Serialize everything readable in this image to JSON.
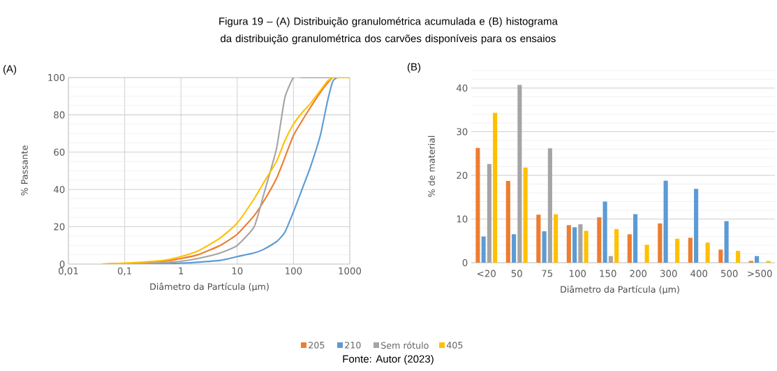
{
  "chart_data": [
    {
      "type": "line",
      "title": "Figura 19 – (A) Distribuição granulométrica acumulada e (B) histograma da distribuição granulométrica dos carvões disponíveis para os ensaios",
      "xlabel": "Diâmetro da Partícula (µm)",
      "ylabel": "% Passante",
      "annotations": [
        "(A)",
        "Fonte: Autor (2023)"
      ],
      "log": "x",
      "grid": true,
      "xlim": [
        0.01,
        1000
      ],
      "ylim": [
        0,
        100
      ],
      "xticks": [
        {
          "value": 0.01,
          "label": "0,01"
        },
        {
          "value": 0.1,
          "label": "0,1"
        },
        1,
        10,
        100,
        1000
      ],
      "yticks": [
        0,
        20,
        40,
        60,
        80,
        100
      ],
      "x": [
        0.04,
        0.1,
        0.2,
        0.5,
        1,
        2,
        5,
        10,
        20,
        30,
        50,
        70,
        100,
        150,
        200,
        300,
        400,
        500,
        600,
        700,
        1000
      ],
      "series": [
        {
          "color": "#ed7d31",
          "values": [
            0,
            0.3,
            0.7,
            1.5,
            3,
            5,
            10,
            16,
            26,
            34,
            46,
            57,
            69,
            78,
            84,
            92,
            97,
            100,
            100,
            null,
            null
          ]
        },
        {
          "color": "#5b9bd5",
          "values": [
            0,
            0,
            0.1,
            0.2,
            0.5,
            1,
            2,
            4,
            6,
            8,
            12,
            17,
            28,
            42,
            52,
            69,
            87,
            98,
            100,
            null,
            null
          ]
        },
        {
          "color": "#a5a5a5",
          "values": [
            0,
            0.1,
            0.3,
            0.8,
            1.5,
            3,
            6,
            10,
            20,
            38,
            62,
            89,
            100,
            100,
            100,
            100,
            100,
            100,
            null,
            null,
            null
          ]
        },
        {
          "color": "#ffc000",
          "values": [
            0,
            0.5,
            1,
            2,
            4,
            7,
            14,
            22,
            35,
            44,
            55,
            66,
            75,
            82,
            86,
            93,
            98,
            100,
            100,
            100,
            100
          ]
        }
      ]
    },
    {
      "type": "bar",
      "xlabel": "Diâmetro da Partícula (µm)",
      "ylabel": "% de material",
      "annotations": [
        "(B)"
      ],
      "grid": "y",
      "legend": "bottom",
      "ylim": [
        0,
        44
      ],
      "yticks": [
        0,
        10,
        20,
        30,
        40
      ],
      "categories": [
        "<20",
        "50",
        "75",
        "100",
        "150",
        "200",
        "300",
        "400",
        "500",
        ">500"
      ],
      "series": [
        {
          "name": "205",
          "color": "#ed7d31",
          "values": [
            26.3,
            18.7,
            11.0,
            8.6,
            10.4,
            6.5,
            9.0,
            5.7,
            3.0,
            0.4
          ]
        },
        {
          "name": "210",
          "color": "#5b9bd5",
          "values": [
            6.0,
            6.5,
            7.2,
            8.1,
            14.0,
            11.1,
            18.8,
            16.9,
            9.5,
            1.5
          ]
        },
        {
          "name": "Sem rótulo",
          "color": "#a5a5a5",
          "values": [
            22.6,
            40.7,
            26.2,
            8.8,
            1.5,
            null,
            null,
            null,
            null,
            null
          ]
        },
        {
          "name": "405",
          "color": "#ffc000",
          "values": [
            34.3,
            21.8,
            11.1,
            7.3,
            7.7,
            4.1,
            5.5,
            4.6,
            2.7,
            0.4
          ]
        }
      ]
    }
  ]
}
